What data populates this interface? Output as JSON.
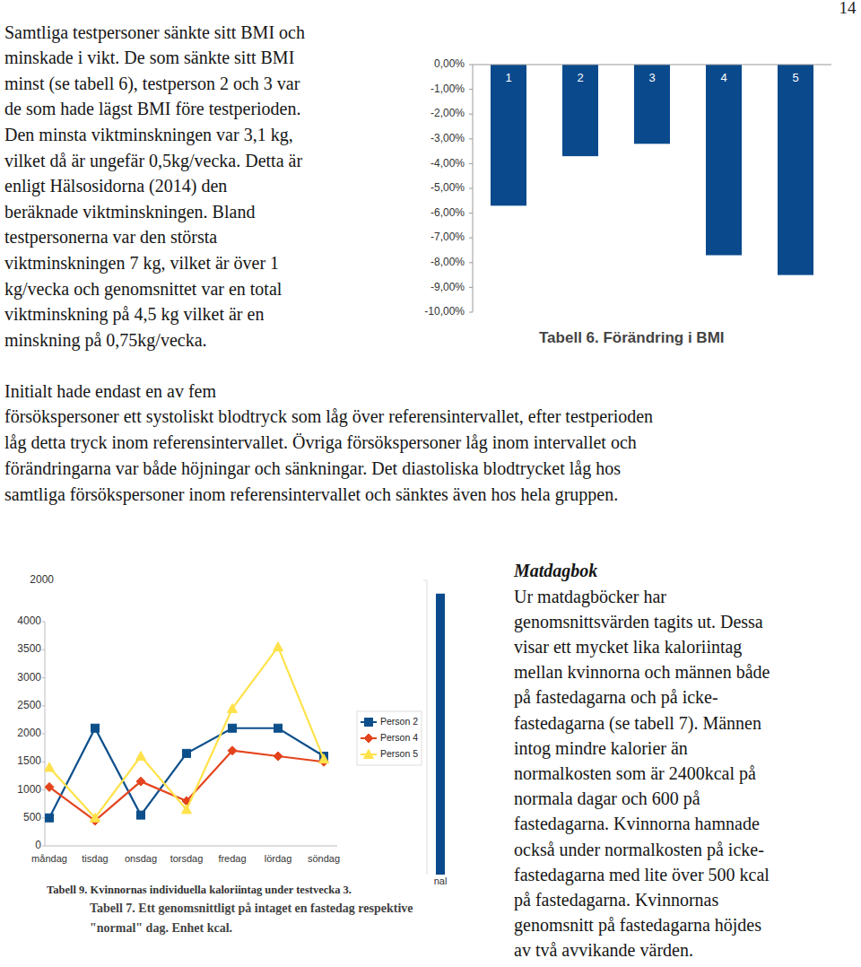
{
  "page_number": "14",
  "paragraphs": [
    {
      "lines": [
        "Samtliga testpersoner sänkte sitt BMI och",
        "minskade i vikt. De som sänkte sitt BMI",
        "minst (se tabell 6), testperson 2 och 3 var",
        "de som hade lägst BMI före testperioden.",
        "Den minsta viktminskningen var 3,1 kg,",
        "vilket då är ungefär 0,5kg/vecka. Detta är",
        "enligt Hälsosidorna (2014) den",
        "beräknade viktminskningen. Bland",
        "testpersonerna var den största",
        "viktminskningen 7 kg, vilket är över 1",
        "kg/vecka och genomsnittet var en total",
        "viktminskning på 4,5 kg vilket är en",
        "minskning på 0,75kg/vecka."
      ]
    },
    {
      "lines": [
        "Initialt hade endast en av fem",
        "försökspersoner ett systoliskt blodtryck som låg över referensintervallet, efter testperioden",
        "låg detta tryck inom referensintervallet. Övriga försökspersoner låg inom intervallet och",
        "förändringarna var både höjningar och sänkningar. Det diastoliska blodtrycket låg hos",
        "samtliga försökspersoner inom referensintervallet och sänktes även hos hela gruppen."
      ]
    }
  ],
  "sidebar": {
    "heading": "Matdagbok",
    "lines": [
      "Ur matdagböcker har",
      "genomsnittsvärden tagits ut. Dessa",
      "visar ett mycket lika kaloriintag",
      "mellan kvinnorna och männen både",
      "på fastedagarna och på icke-",
      "fastedagarna (se tabell 7). Männen",
      "intog mindre kalorier än",
      "normalkosten som är 2400kcal på",
      "normala dagar och 600 på",
      "fastedagarna. Kvinnorna hamnade",
      "också under normalkosten på icke-",
      "fastedagarna med lite över 500 kcal",
      "på fastedagarna. Kvinnornas",
      "genomsnitt på fastedagarna höjdes",
      "av två avvikande värden."
    ]
  },
  "chart_data": [
    {
      "type": "bar",
      "title": "Tabell 6. Förändring i BMI",
      "categories": [
        "1",
        "2",
        "3",
        "4",
        "5"
      ],
      "values": [
        -5.7,
        -3.7,
        -3.2,
        -7.7,
        -8.5
      ],
      "color": "#0a4a8c",
      "ylim": [
        -10,
        0
      ],
      "yticks": [
        {
          "value": 0,
          "label": "0,00%"
        },
        {
          "value": -1,
          "label": "-1,00%"
        },
        {
          "value": -2,
          "label": "-2,00%"
        },
        {
          "value": -3,
          "label": "-3,00%"
        },
        {
          "value": -4,
          "label": "-4,00%"
        },
        {
          "value": -5,
          "label": "-5,00%"
        },
        {
          "value": -6,
          "label": "-6,00%"
        },
        {
          "value": -7,
          "label": "-7,00%"
        },
        {
          "value": -8,
          "label": "-8,00%"
        },
        {
          "value": -9,
          "label": "-9,00%"
        },
        {
          "value": -10,
          "label": "-10,00%"
        }
      ],
      "grid": false
    },
    {
      "type": "line",
      "title": "Tabell 9. Kvinnornas individuella kaloriintag under testvecka 3.",
      "categories": [
        "måndag",
        "tisdag",
        "onsdag",
        "torsdag",
        "fredag",
        "lördag",
        "söndag"
      ],
      "series": [
        {
          "name": "Person 2",
          "color": "#0d4f8b",
          "marker": "square",
          "values": [
            500,
            2100,
            550,
            1650,
            2100,
            2100,
            1600
          ]
        },
        {
          "name": "Person 4",
          "color": "#e4441d",
          "marker": "diamond",
          "values": [
            1050,
            450,
            1150,
            800,
            1700,
            1600,
            1500
          ]
        },
        {
          "name": "Person 5",
          "color": "#ffe24a",
          "marker": "triangle",
          "values": [
            1400,
            500,
            1600,
            650,
            2450,
            3550,
            1550
          ]
        }
      ],
      "ylim": [
        0,
        4000
      ],
      "yticks": [
        0,
        500,
        1000,
        1500,
        2000,
        2500,
        3000,
        3500,
        4000
      ],
      "legend": "right",
      "grid": false
    },
    {
      "type": "bar",
      "title": "Tabell 7. Ett genomsnittligt på intaget en fastedag respektive \"normal\" dag. Enhet kcal.",
      "categories": [
        "nal"
      ],
      "values": [
        1910
      ],
      "color": "#0a4a8c",
      "ylim": [
        0,
        2000
      ],
      "yticks": [
        2000
      ]
    }
  ]
}
